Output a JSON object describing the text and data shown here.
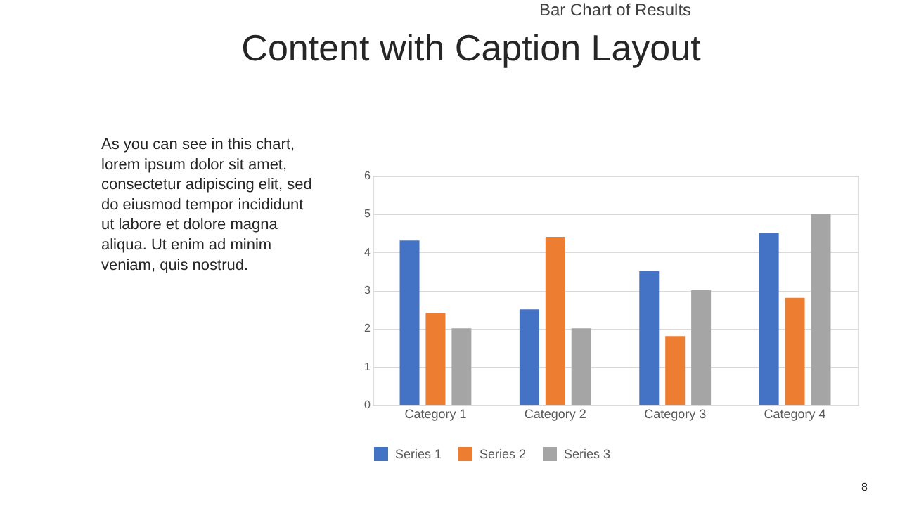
{
  "chart_data": {
    "type": "bar",
    "title": "Bar Chart of Results",
    "categories": [
      "Category 1",
      "Category 2",
      "Category 3",
      "Category 4"
    ],
    "series": [
      {
        "name": "Series 1",
        "color": "#4472c4",
        "values": [
          4.3,
          2.5,
          3.5,
          4.5
        ]
      },
      {
        "name": "Series 2",
        "color": "#ed7d31",
        "values": [
          2.4,
          4.4,
          1.8,
          2.8
        ]
      },
      {
        "name": "Series 3",
        "color": "#a5a5a5",
        "values": [
          2,
          2,
          3,
          5
        ]
      }
    ],
    "ylim": [
      0,
      6
    ],
    "yticks": [
      0,
      1,
      2,
      3,
      4,
      5,
      6
    ],
    "grid": "y",
    "legend": "bottom",
    "annotations": [
      "Content with Caption Layout",
      "As you can see in this chart,\nlorem ipsum dolor sit amet,\nconsectetur adipiscing elit, sed\ndo eiusmod tempor incididunt\nut labore et dolore magna\naliqua. Ut enim ad minim\nveniam, quis nostrud.",
      "8"
    ]
  }
}
